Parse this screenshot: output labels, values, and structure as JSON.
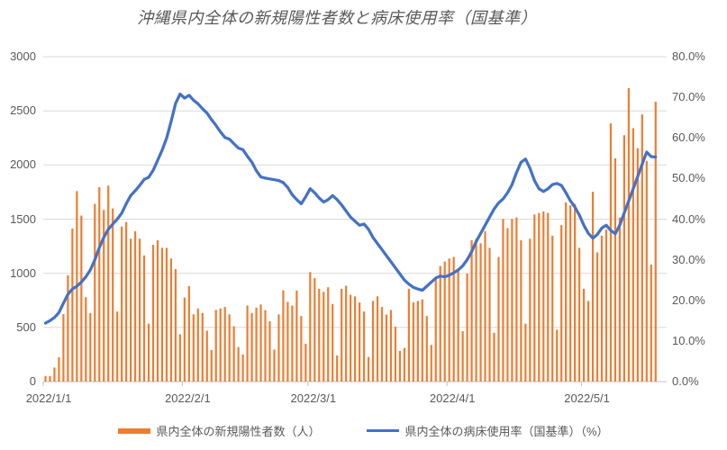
{
  "title": "沖縄県内全体の新規陽性者数と病床使用率（国基準）",
  "chart_data": {
    "type": "bar+line combo",
    "title": "沖縄県内全体の新規陽性者数と病床使用率（国基準）",
    "x_start_date": "2022/1/1",
    "x_days": 137,
    "x_month_day_counts": [
      31,
      28,
      31,
      30,
      17
    ],
    "x_tick_labels": [
      "2022/1/1",
      "2022/2/1",
      "2022/3/1",
      "2022/4/1",
      "2022/5/1"
    ],
    "grid": true,
    "legend_position": "bottom",
    "left_axis": {
      "min": 0,
      "max": 3000,
      "step": 500,
      "ticks": [
        "0",
        "500",
        "1000",
        "1500",
        "2000",
        "2500",
        "3000"
      ]
    },
    "right_axis": {
      "min": 0,
      "max": 80,
      "step": 10,
      "ticks": [
        "0.0%",
        "10.0%",
        "20.0%",
        "30.0%",
        "40.0%",
        "50.0%",
        "60.0%",
        "70.0%",
        "80.0%"
      ]
    },
    "series": [
      {
        "name": "県内全体の新規陽性者数（人）",
        "type": "bar",
        "axis": "left",
        "color": "#ED7D31",
        "values": [
          52,
          51,
          130,
          225,
          623,
          981,
          1414,
          1759,
          1533,
          779,
          633,
          1641,
          1795,
          1585,
          1809,
          1599,
          647,
          1431,
          1473,
          1319,
          1389,
          1319,
          1165,
          535,
          1263,
          1305,
          1235,
          1235,
          1137,
          1039,
          437,
          777,
          881,
          621,
          675,
          634,
          470,
          292,
          662,
          675,
          689,
          621,
          511,
          319,
          251,
          703,
          634,
          683,
          712,
          660,
          557,
          296,
          620,
          843,
          736,
          702,
          841,
          605,
          350,
          1011,
          955,
          857,
          829,
          871,
          717,
          241,
          857,
          885,
          801,
          787,
          731,
          647,
          227,
          745,
          787,
          689,
          619,
          661,
          507,
          283,
          311,
          857,
          731,
          745,
          759,
          605,
          339,
          955,
          1067,
          1109,
          1137,
          1151,
          1039,
          465,
          997,
          1305,
          1319,
          1277,
          1389,
          1235,
          451,
          1151,
          1501,
          1417,
          1501,
          1515,
          1305,
          535,
          1319,
          1543,
          1557,
          1571,
          1557,
          1347,
          479,
          1445,
          1655,
          1627,
          1641,
          1235,
          857,
          745,
          1753,
          1193,
          1347,
          1403,
          2384,
          2062,
          1515,
          2275,
          2710,
          2340,
          2155,
          2467,
          2038,
          1080,
          2584
        ]
      },
      {
        "name": "県内全体の病床使用率（国基準）（%）",
        "type": "line",
        "axis": "right",
        "color": "#4472C4",
        "values": [
          14.4,
          15.0,
          15.8,
          17.0,
          19.3,
          21.5,
          22.8,
          23.5,
          24.5,
          25.8,
          27.5,
          30.0,
          33.0,
          35.5,
          37.5,
          38.8,
          40.0,
          41.5,
          43.8,
          45.8,
          47.0,
          48.3,
          49.8,
          50.3,
          52.0,
          54.5,
          57.0,
          60.0,
          64.0,
          68.5,
          70.8,
          69.8,
          70.5,
          69.3,
          68.4,
          67.2,
          66.1,
          64.5,
          63.1,
          61.5,
          60.1,
          59.7,
          58.6,
          57.5,
          57.1,
          55.5,
          54.0,
          51.9,
          50.4,
          50.1,
          49.9,
          49.7,
          49.5,
          49.0,
          47.8,
          46.0,
          44.8,
          43.8,
          45.5,
          47.5,
          46.5,
          45.2,
          44.2,
          44.8,
          45.8,
          44.8,
          43.5,
          42.0,
          40.5,
          39.5,
          38.5,
          38.8,
          37.5,
          35.5,
          34.0,
          32.5,
          31.0,
          29.5,
          28.0,
          26.5,
          25.0,
          24.0,
          23.2,
          22.8,
          22.5,
          23.5,
          24.5,
          25.5,
          26.0,
          25.8,
          26.2,
          26.8,
          27.5,
          28.5,
          30.0,
          32.0,
          34.5,
          36.5,
          38.5,
          40.5,
          42.5,
          44.0,
          45.0,
          46.5,
          48.5,
          51.5,
          54.0,
          54.8,
          52.5,
          49.5,
          47.5,
          46.8,
          47.5,
          48.5,
          48.8,
          48.3,
          46.5,
          44.5,
          43.0,
          41.0,
          38.5,
          36.5,
          35.3,
          36.2,
          37.8,
          38.5,
          37.2,
          36.4,
          38.5,
          41.5,
          44.5,
          47.5,
          50.5,
          53.5,
          56.5,
          55.4,
          55.3
        ]
      }
    ],
    "legend": [
      {
        "label": "県内全体の新規陽性者数（人）",
        "color": "#ED7D31",
        "marker": "bar"
      },
      {
        "label": "県内全体の病床使用率（国基準）（%）",
        "color": "#4472C4",
        "marker": "line"
      }
    ],
    "colors": {
      "bar": "#ED7D31",
      "line": "#4472C4",
      "gridline": "#D9D9D9",
      "axis": "#BFBFBF",
      "text": "#595959"
    }
  }
}
